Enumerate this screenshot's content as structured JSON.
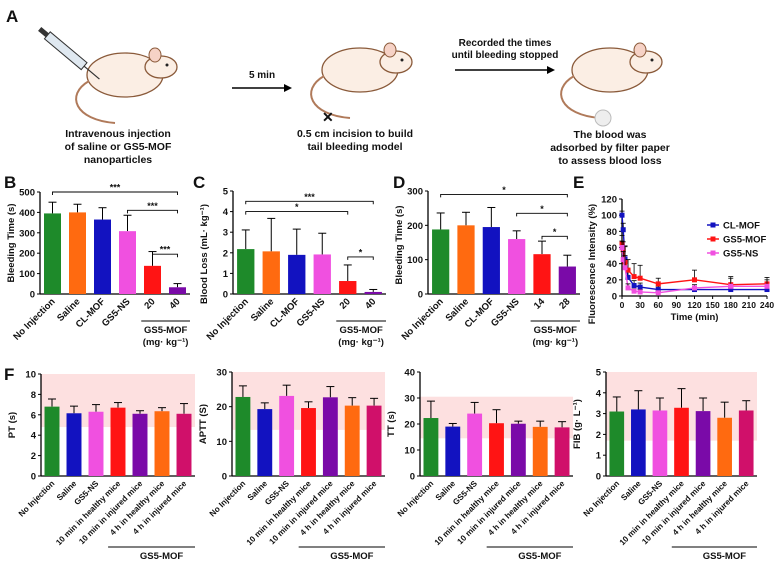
{
  "panel_a": {
    "letter": "A",
    "step1_caption": [
      "Intravenous injection",
      "of saline or GS5-MOF",
      "nanoparticles"
    ],
    "arrow1_label": "5 min",
    "step2_caption": [
      "0.5 cm incision to build",
      "tail bleeding model"
    ],
    "arrow2_label": [
      "Recorded the times",
      "until bleeding stopped"
    ],
    "step3_caption": [
      "The blood was",
      "adsorbed by filter paper",
      "to assess blood loss"
    ]
  },
  "colors": {
    "green": "#1e8a2a",
    "orange": "#ff6a10",
    "blue": "#1212c0",
    "pink": "#f050e0",
    "red": "#ff1414",
    "purple": "#7a0aa8",
    "crimson": "#d0106a",
    "band": "#fde0e0"
  },
  "chart_data": [
    {
      "id": "B",
      "letter": "B",
      "type": "bar",
      "ylabel": "Bleeding Time (s)",
      "ylim": [
        0,
        500
      ],
      "yticks": [
        0,
        100,
        200,
        300,
        400,
        500
      ],
      "categories": [
        "No Injection",
        "Saline",
        "CL-MOF",
        "GS5-NS",
        "20",
        "40"
      ],
      "group_label": [
        "GS5-MOF",
        "(mg· kg⁻¹)"
      ],
      "group_from": 4,
      "values": [
        395,
        400,
        365,
        308,
        138,
        33
      ],
      "errors": [
        55,
        40,
        58,
        78,
        70,
        18
      ],
      "bar_colors": [
        "green",
        "orange",
        "blue",
        "pink",
        "red",
        "purple"
      ],
      "significance": [
        {
          "from": 0,
          "to": 5,
          "y": 500,
          "label": "***"
        },
        {
          "from": 3,
          "to": 5,
          "y": 410,
          "label": "***"
        },
        {
          "from": 4,
          "to": 5,
          "y": 195,
          "label": "***"
        }
      ]
    },
    {
      "id": "C",
      "letter": "C",
      "type": "bar",
      "ylabel": "Blood Loss (mL· kg⁻¹)",
      "ylim": [
        0,
        5
      ],
      "yticks": [
        0,
        1,
        2,
        3,
        4,
        5
      ],
      "categories": [
        "No Injection",
        "Saline",
        "CL-MOF",
        "GS5-NS",
        "20",
        "40"
      ],
      "group_label": [
        "GS5-MOF",
        "(mg· kg⁻¹)"
      ],
      "group_from": 4,
      "values": [
        2.18,
        2.07,
        1.9,
        1.92,
        0.63,
        0.1
      ],
      "errors": [
        0.93,
        1.6,
        1.25,
        1.03,
        0.78,
        0.12
      ],
      "bar_colors": [
        "green",
        "orange",
        "blue",
        "pink",
        "red",
        "purple"
      ],
      "significance": [
        {
          "from": 0,
          "to": 5,
          "y": 4.5,
          "label": "***"
        },
        {
          "from": 0,
          "to": 4,
          "y": 4.0,
          "label": "*"
        },
        {
          "from": 4,
          "to": 5,
          "y": 1.8,
          "label": "*"
        }
      ]
    },
    {
      "id": "D",
      "letter": "D",
      "type": "bar",
      "ylabel": "Bleeding Time (s)",
      "ylim": [
        0,
        300
      ],
      "yticks": [
        0,
        100,
        200,
        300
      ],
      "categories": [
        "No Injection",
        "Saline",
        "CL-MOF",
        "GS5-NS",
        "14",
        "28"
      ],
      "group_label": [
        "GS5-MOF",
        "(mg· kg⁻¹)"
      ],
      "group_from": 4,
      "values": [
        188,
        200,
        195,
        160,
        116,
        80
      ],
      "errors": [
        48,
        38,
        57,
        24,
        38,
        33
      ],
      "bar_colors": [
        "green",
        "orange",
        "blue",
        "pink",
        "red",
        "purple"
      ],
      "significance": [
        {
          "from": 0,
          "to": 5,
          "y": 290,
          "label": "*"
        },
        {
          "from": 3,
          "to": 5,
          "y": 235,
          "label": "*"
        },
        {
          "from": 4,
          "to": 5,
          "y": 168,
          "label": "*"
        }
      ]
    },
    {
      "id": "E",
      "letter": "E",
      "type": "line",
      "ylabel": "Fluorescence Intensity (%)",
      "xlabel": "Time (min)",
      "xlim": [
        0,
        240
      ],
      "ylim": [
        0,
        120
      ],
      "xticks": [
        0,
        30,
        60,
        90,
        120,
        150,
        180,
        210,
        240
      ],
      "yticks": [
        0,
        20,
        40,
        60,
        80,
        100,
        120
      ],
      "legend": "right",
      "x": [
        0,
        2,
        5,
        10,
        20,
        30,
        60,
        120,
        180,
        240
      ],
      "series": [
        {
          "name": "CL-MOF",
          "color": "blue",
          "values": [
            100,
            82,
            46,
            23,
            13,
            11,
            8,
            8,
            8,
            8
          ],
          "errors": [
            5,
            8,
            15,
            10,
            6,
            5,
            4,
            4,
            4,
            4
          ]
        },
        {
          "name": "GS5-MOF",
          "color": "red",
          "values": [
            65,
            57,
            42,
            32,
            24,
            22,
            15,
            20,
            14,
            15
          ],
          "errors": [
            10,
            10,
            20,
            13,
            16,
            16,
            7,
            12,
            10,
            8
          ]
        },
        {
          "name": "GS5-NS",
          "color": "pink",
          "values": [
            60,
            45,
            35,
            10,
            6,
            5,
            4,
            10,
            12,
            12
          ],
          "errors": [
            8,
            10,
            15,
            5,
            3,
            3,
            2,
            4,
            10,
            8
          ]
        }
      ]
    },
    {
      "id": "PT",
      "letter": "F",
      "type": "bar",
      "ylabel": "PT (s)",
      "ylim": [
        0,
        10
      ],
      "yticks": [
        0,
        2,
        4,
        6,
        8,
        10
      ],
      "normal_range": [
        4.8,
        10
      ],
      "categories": [
        "No Injection",
        "Saline",
        "GS5-NS",
        "10 min in healthy mice",
        "10 min in injured mice",
        "4 h  in healthy mice",
        "4 h in injured mice"
      ],
      "group_label": [
        "GS5-MOF"
      ],
      "group_from": 3,
      "values": [
        6.8,
        6.15,
        6.3,
        6.7,
        6.1,
        6.35,
        6.1
      ],
      "errors": [
        0.75,
        0.7,
        0.7,
        0.5,
        0.3,
        0.35,
        1.0
      ],
      "bar_colors": [
        "green",
        "blue",
        "pink",
        "red",
        "purple",
        "orange",
        "crimson"
      ]
    },
    {
      "id": "APTT",
      "letter": "",
      "type": "bar",
      "ylabel": "APTT (S)",
      "ylim": [
        0,
        30
      ],
      "yticks": [
        0,
        10,
        20,
        30
      ],
      "normal_range": [
        13.3,
        30
      ],
      "categories": [
        "No Injection",
        "Saline",
        "GS5-NS",
        "10 min in healthy mice",
        "10 min in injured mice",
        "4 h in healthy mice",
        "4 h in injured mice"
      ],
      "group_label": [
        "GS5-MOF"
      ],
      "group_from": 3,
      "values": [
        22.8,
        19.3,
        23.1,
        19.6,
        22.7,
        20.3,
        20.3
      ],
      "errors": [
        3.2,
        1.8,
        3.1,
        1.8,
        3.1,
        2.3,
        2.1
      ],
      "bar_colors": [
        "green",
        "blue",
        "pink",
        "red",
        "purple",
        "orange",
        "crimson"
      ]
    },
    {
      "id": "TT",
      "letter": "",
      "type": "bar",
      "ylabel": "TT (s)",
      "ylim": [
        0,
        40
      ],
      "yticks": [
        0,
        10,
        20,
        30,
        40
      ],
      "normal_range": [
        14.5,
        30.5
      ],
      "categories": [
        "No Injection",
        "Saline",
        "GS5-NS",
        "10 min in healthy mice",
        "10 min in injured mice",
        "4 h in healthy mice",
        "4 h in injured mice"
      ],
      "group_label": [
        "GS5-MOF"
      ],
      "group_from": 3,
      "values": [
        22.3,
        19,
        24,
        20.3,
        20.1,
        18.9,
        18.7
      ],
      "errors": [
        6.5,
        1.2,
        4.3,
        5.2,
        1,
        2.2,
        2.2
      ],
      "bar_colors": [
        "green",
        "blue",
        "pink",
        "red",
        "purple",
        "orange",
        "crimson"
      ]
    },
    {
      "id": "FIB",
      "letter": "",
      "type": "bar",
      "ylabel": "FIB (g· L⁻¹)",
      "ylim": [
        0,
        5
      ],
      "yticks": [
        0,
        1,
        2,
        3,
        4,
        5
      ],
      "normal_range": [
        1.7,
        5
      ],
      "categories": [
        "No Injection",
        "Saline",
        "GS5-NS",
        "10 min in healthy mice",
        "10 min in injured mice",
        "4 h in healthy mice",
        "4 h in injured mice"
      ],
      "group_label": [
        "GS5-MOF"
      ],
      "group_from": 3,
      "values": [
        3.1,
        3.2,
        3.15,
        3.28,
        3.12,
        2.8,
        3.15
      ],
      "errors": [
        0.7,
        0.9,
        0.6,
        0.92,
        0.63,
        0.75,
        0.47
      ],
      "bar_colors": [
        "green",
        "blue",
        "pink",
        "red",
        "purple",
        "orange",
        "crimson"
      ]
    }
  ]
}
